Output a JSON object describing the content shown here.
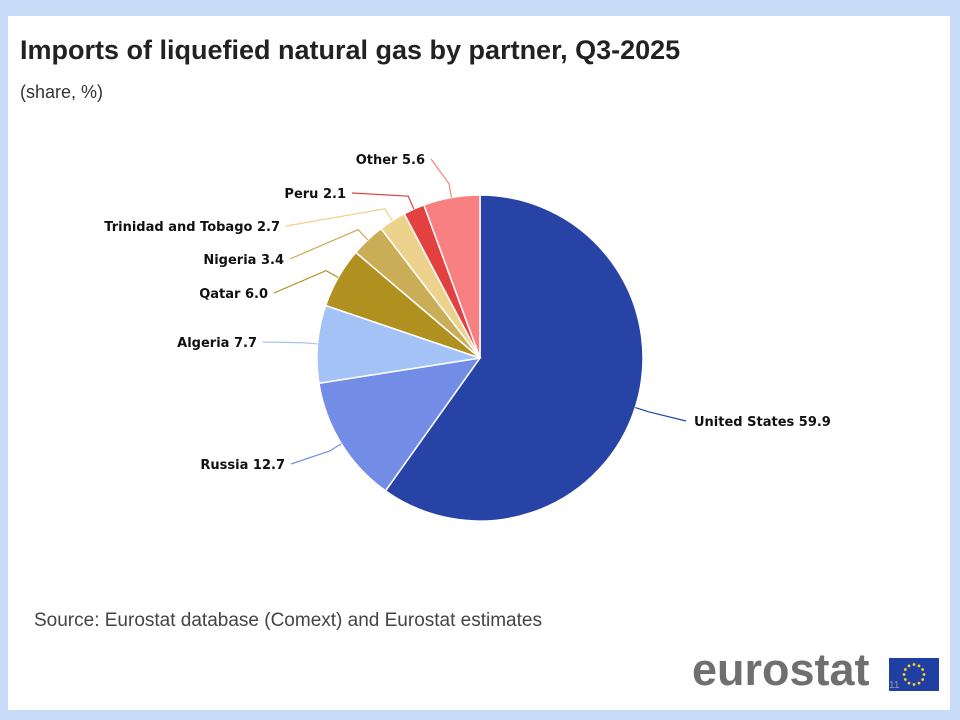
{
  "chart_data": {
    "type": "pie",
    "title": "Imports of liquefied natural gas by partner, Q3-2025",
    "subtitle": "(share, %)",
    "slices": [
      {
        "label": "United States",
        "value": 59.9,
        "color": "#2743a6"
      },
      {
        "label": "Russia",
        "value": 12.7,
        "color": "#738de6"
      },
      {
        "label": "Algeria",
        "value": 7.7,
        "color": "#a3c3f7"
      },
      {
        "label": "Qatar",
        "value": 6.0,
        "color": "#b0901e"
      },
      {
        "label": "Nigeria",
        "value": 3.4,
        "color": "#c9ad57"
      },
      {
        "label": "Trinidad and Tobago",
        "value": 2.7,
        "color": "#ecd28c"
      },
      {
        "label": "Peru",
        "value": 2.1,
        "color": "#e34040"
      },
      {
        "label": "Other",
        "value": 5.6,
        "color": "#f88080"
      }
    ],
    "start_angle_deg": 0,
    "direction": "clockwise",
    "legend": "none"
  },
  "source": "Source: Eurostat database (Comext) and Eurostat estimates",
  "logo": {
    "text": "eurostat",
    "icon": "eu-flag-icon"
  },
  "page_number": "11"
}
